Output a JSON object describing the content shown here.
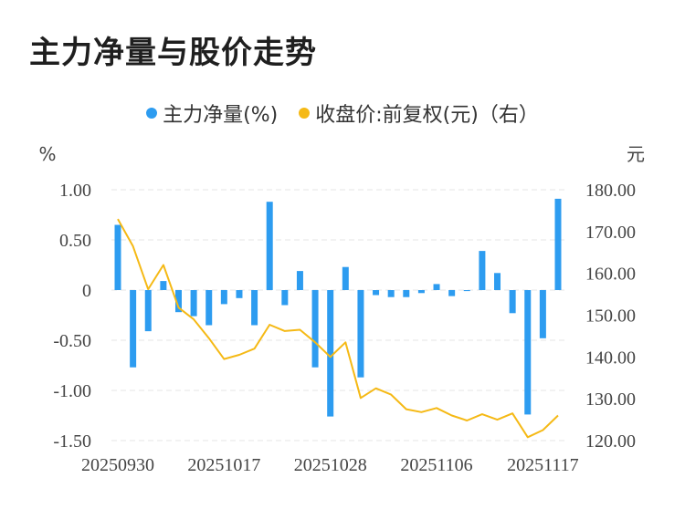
{
  "title": "主力净量与股价走势",
  "legend": {
    "series1": "主力净量(%)",
    "series2": "收盘价:前复权(元)（右）"
  },
  "colors": {
    "bar": "#2d9cf0",
    "line": "#f5b915",
    "grid": "#e6e6e6"
  },
  "chart_data": {
    "type": "bar+line",
    "left_unit": "%",
    "right_unit": "元",
    "left_ylim": [
      -1.5,
      1.0
    ],
    "right_ylim": [
      120,
      180
    ],
    "left_ticks": [
      "1.00",
      "0.50",
      "0",
      "-0.50",
      "-1.00",
      "-1.50"
    ],
    "right_ticks": [
      "180.00",
      "170.00",
      "160.00",
      "150.00",
      "140.00",
      "130.00",
      "120.00"
    ],
    "x_tick_labels": [
      "20250930",
      "20251017",
      "20251028",
      "20251106",
      "20251117"
    ],
    "x_tick_index": [
      0,
      7,
      14,
      21,
      28
    ],
    "grid": true,
    "series": [
      {
        "name": "主力净量(%)",
        "type": "bar",
        "axis": "left",
        "values": [
          0.65,
          -0.77,
          -0.41,
          0.09,
          -0.22,
          -0.26,
          -0.35,
          -0.14,
          -0.08,
          -0.35,
          0.88,
          -0.15,
          0.19,
          -0.77,
          -1.26,
          0.23,
          -0.87,
          -0.05,
          -0.07,
          -0.07,
          -0.03,
          0.06,
          -0.06,
          -0.01,
          0.39,
          0.17,
          -0.23,
          -1.24,
          -0.48,
          0.91
        ]
      },
      {
        "name": "收盘价:前复权(元)（右）",
        "type": "line",
        "axis": "right",
        "values": [
          173.0,
          166.5,
          156.2,
          162.0,
          151.8,
          149.0,
          144.5,
          139.5,
          140.5,
          142.0,
          147.7,
          146.2,
          146.5,
          143.5,
          140.0,
          143.5,
          130.2,
          132.5,
          131.0,
          127.5,
          126.8,
          127.8,
          126.0,
          124.8,
          126.3,
          125.0,
          126.5,
          120.8,
          122.5,
          126.0
        ]
      }
    ]
  }
}
